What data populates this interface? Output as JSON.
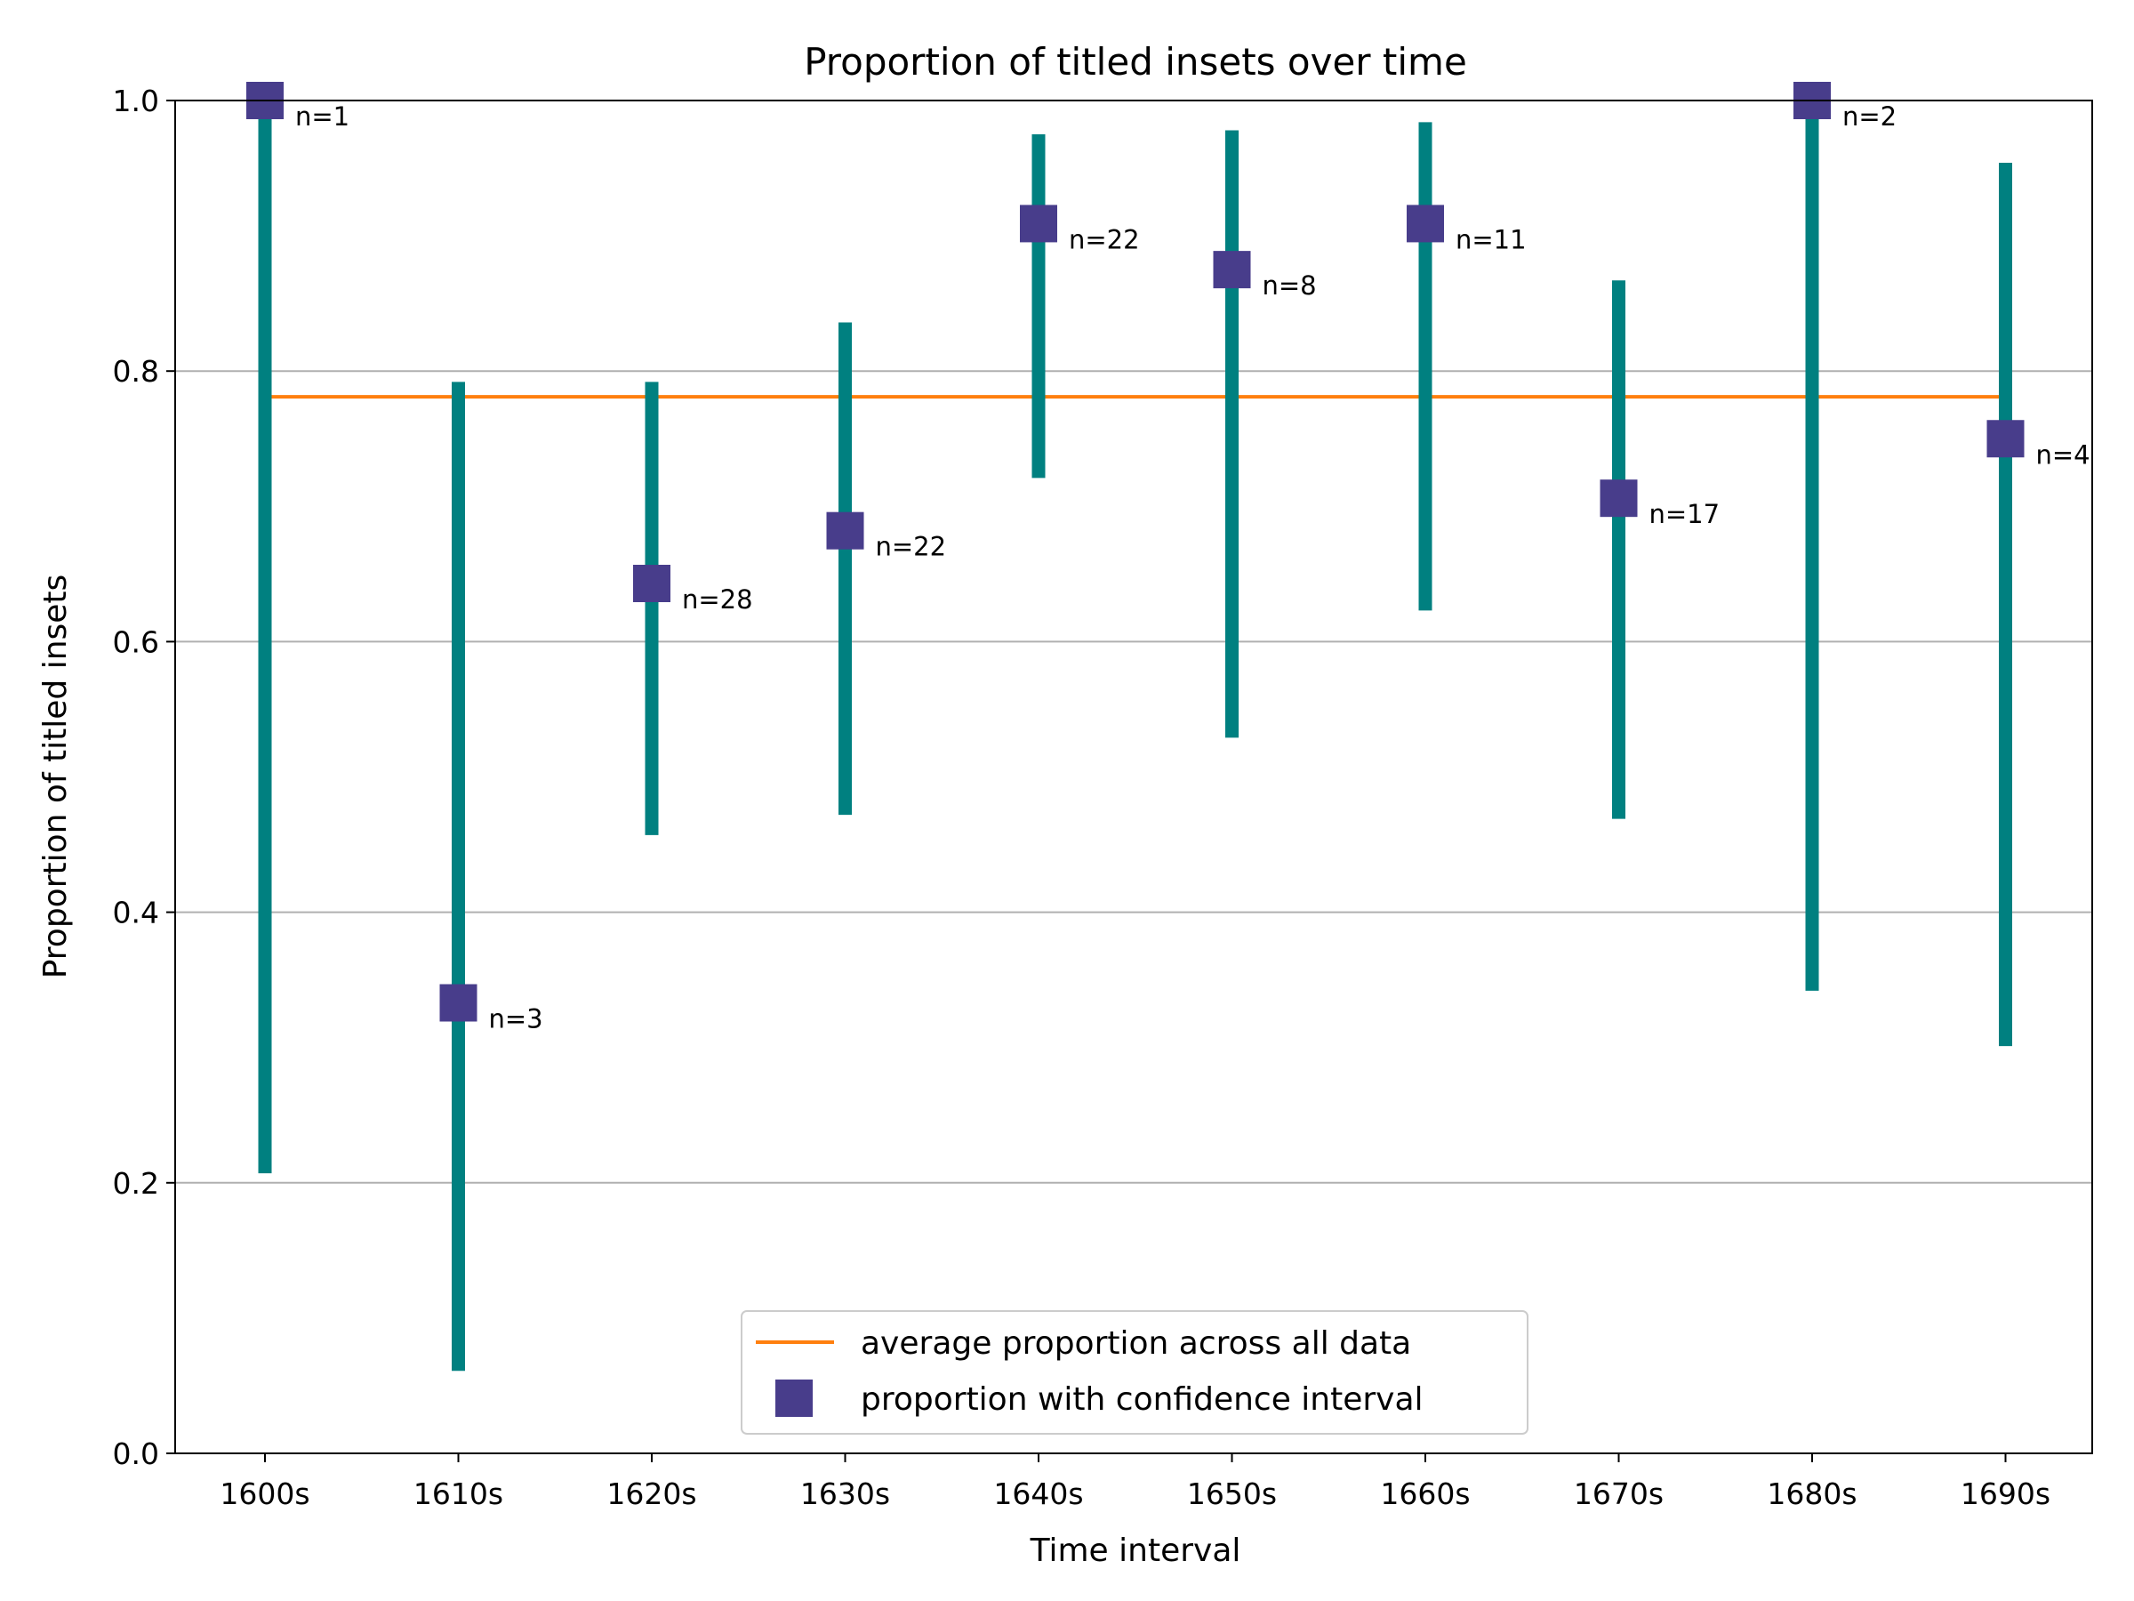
{
  "chart_data": {
    "type": "errorbar",
    "title": "Proportion of titled insets over time",
    "xlabel": "Time interval",
    "ylabel": "Proportion of titled insets",
    "ylim": [
      0,
      1
    ],
    "yticks": [
      "0.0",
      "0.2",
      "0.4",
      "0.6",
      "0.8",
      "1.0"
    ],
    "grid": "horizontal",
    "legend_position": "bottom-center",
    "categories": [
      "1600s",
      "1610s",
      "1620s",
      "1630s",
      "1640s",
      "1650s",
      "1660s",
      "1670s",
      "1680s",
      "1690s"
    ],
    "series": [
      {
        "name": "proportion with confidence interval",
        "values": [
          1.0,
          0.333,
          0.643,
          0.682,
          0.909,
          0.875,
          0.909,
          0.706,
          1.0,
          0.75
        ],
        "ci_lower": [
          0.207,
          0.061,
          0.457,
          0.472,
          0.721,
          0.529,
          0.623,
          0.469,
          0.342,
          0.301
        ],
        "ci_upper": [
          1.0,
          0.792,
          0.792,
          0.836,
          0.975,
          0.978,
          0.984,
          0.867,
          1.0,
          0.954
        ],
        "counts": [
          "n=1",
          "n=3",
          "n=28",
          "n=22",
          "n=22",
          "n=8",
          "n=11",
          "n=17",
          "n=2",
          "n=4"
        ],
        "color": "#483d8b",
        "error_color": "#008080"
      },
      {
        "name": "average proportion across all data",
        "value": 0.781,
        "color": "#ff7f0e"
      }
    ],
    "gridline_color": "#b0b0b0"
  }
}
